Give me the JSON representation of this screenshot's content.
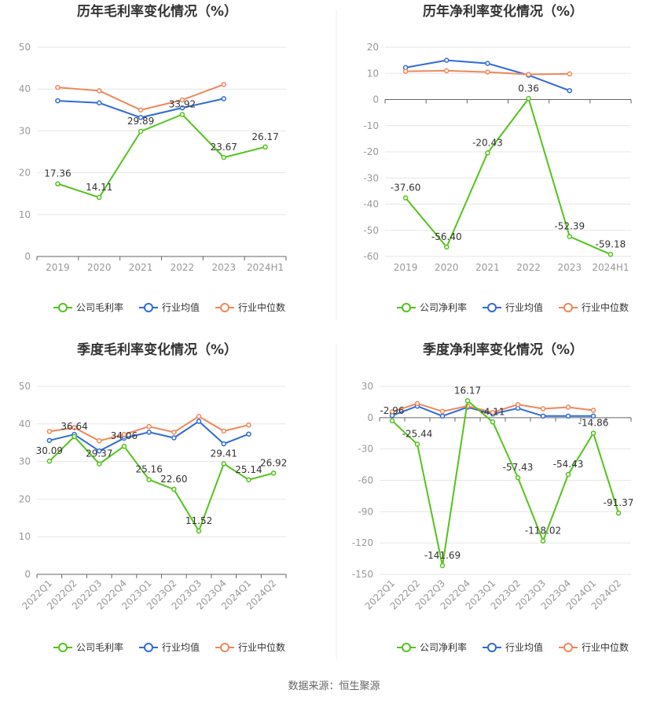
{
  "source_note": "数据来源：恒生聚源",
  "colors": {
    "company": "#52C41A",
    "industry_avg": "#2F6BD9",
    "industry_median": "#F0875A",
    "grid": "#E6E6E6",
    "axis": "#666666"
  },
  "legend_labels": {
    "gross": [
      "公司毛利率",
      "行业均值",
      "行业中位数"
    ],
    "net": [
      "公司净利率",
      "行业均值",
      "行业中位数"
    ]
  },
  "chart_data": [
    {
      "id": "annual-gross",
      "type": "line",
      "title": "历年毛利率变化情况（%）",
      "categories": [
        "2019",
        "2020",
        "2021",
        "2022",
        "2023",
        "2024H1"
      ],
      "ylim": [
        0,
        50
      ],
      "yticks": [
        0,
        10,
        20,
        30,
        40,
        50
      ],
      "zero_axis": false,
      "rotate_x": false,
      "legend": "bottom",
      "series": [
        {
          "name": "公司毛利率",
          "color": "#52C41A",
          "values": [
            17.36,
            14.11,
            29.89,
            33.92,
            23.67,
            26.17
          ],
          "labeled": true
        },
        {
          "name": "行业均值",
          "color": "#2F6BD9",
          "values": [
            37.2,
            36.7,
            33.2,
            35.5,
            37.7,
            null
          ],
          "labeled": false
        },
        {
          "name": "行业中位数",
          "color": "#F0875A",
          "values": [
            40.4,
            39.6,
            35.0,
            37.4,
            41.1,
            null
          ],
          "labeled": false
        }
      ]
    },
    {
      "id": "annual-net",
      "type": "line",
      "title": "历年净利率变化情况（%）",
      "categories": [
        "2019",
        "2020",
        "2021",
        "2022",
        "2023",
        "2024H1"
      ],
      "ylim": [
        -60,
        20
      ],
      "yticks": [
        -60,
        -50,
        -40,
        -30,
        -20,
        -10,
        0,
        10,
        20
      ],
      "zero_axis": true,
      "rotate_x": false,
      "legend": "bottom",
      "series": [
        {
          "name": "公司净利率",
          "color": "#52C41A",
          "values": [
            -37.6,
            -56.4,
            -20.43,
            0.36,
            -52.39,
            -59.18
          ],
          "labeled": true
        },
        {
          "name": "行业均值",
          "color": "#2F6BD9",
          "values": [
            12.2,
            15.0,
            13.8,
            9.3,
            3.4,
            null
          ],
          "labeled": false
        },
        {
          "name": "行业中位数",
          "color": "#F0875A",
          "values": [
            10.8,
            11.0,
            10.5,
            9.6,
            9.8,
            null
          ],
          "labeled": false
        }
      ]
    },
    {
      "id": "quarterly-gross",
      "type": "line",
      "title": "季度毛利率变化情况（%）",
      "categories": [
        "2022Q1",
        "2022Q2",
        "2022Q3",
        "2022Q4",
        "2023Q1",
        "2023Q2",
        "2023Q3",
        "2023Q4",
        "2024Q1",
        "2024Q2"
      ],
      "ylim": [
        0,
        50
      ],
      "yticks": [
        0,
        10,
        20,
        30,
        40,
        50
      ],
      "zero_axis": false,
      "rotate_x": true,
      "legend": "bottom",
      "series": [
        {
          "name": "公司毛利率",
          "color": "#52C41A",
          "values": [
            30.09,
            36.64,
            29.37,
            34.06,
            25.16,
            22.6,
            11.52,
            29.41,
            25.14,
            26.92
          ],
          "labeled": true
        },
        {
          "name": "行业均值",
          "color": "#2F6BD9",
          "values": [
            35.6,
            37.2,
            32.8,
            36.2,
            37.8,
            36.3,
            40.7,
            34.7,
            37.3,
            null
          ],
          "labeled": false
        },
        {
          "name": "行业中位数",
          "color": "#F0875A",
          "values": [
            38.0,
            39.0,
            35.5,
            37.2,
            39.3,
            37.8,
            42.0,
            38.1,
            39.7,
            null
          ],
          "labeled": false
        }
      ]
    },
    {
      "id": "quarterly-net",
      "type": "line",
      "title": "季度净利率变化情况（%）",
      "categories": [
        "2022Q1",
        "2022Q2",
        "2022Q3",
        "2022Q4",
        "2023Q1",
        "2023Q2",
        "2023Q3",
        "2023Q4",
        "2024Q1",
        "2024Q2"
      ],
      "ylim": [
        -150,
        30
      ],
      "yticks": [
        -150,
        -120,
        -90,
        -60,
        -30,
        0,
        30
      ],
      "zero_axis": true,
      "rotate_x": true,
      "legend": "bottom",
      "series": [
        {
          "name": "公司净利率",
          "color": "#52C41A",
          "values": [
            -2.96,
            -25.44,
            -141.69,
            16.17,
            -4.11,
            -57.43,
            -118.02,
            -54.43,
            -14.86,
            -91.37
          ],
          "labeled": true
        },
        {
          "name": "行业均值",
          "color": "#2F6BD9",
          "values": [
            2.0,
            11.0,
            1.5,
            10.0,
            3.5,
            9.0,
            1.5,
            1.5,
            1.5,
            null
          ],
          "labeled": false
        },
        {
          "name": "行业中位数",
          "color": "#F0875A",
          "values": [
            5.5,
            13.5,
            6.0,
            11.0,
            5.0,
            12.5,
            8.5,
            10.0,
            7.0,
            null
          ],
          "labeled": false
        }
      ]
    }
  ]
}
